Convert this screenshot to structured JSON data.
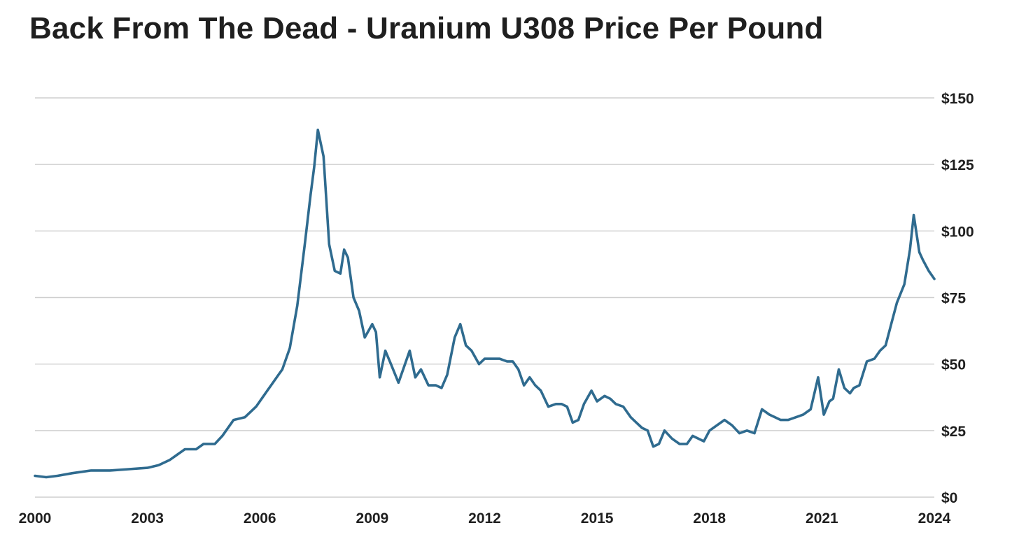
{
  "colors": {
    "line": "#2f6b8f",
    "grid": "#cfcfcf",
    "text": "#1f1f1f"
  },
  "chart_data": {
    "type": "line",
    "title": "Back From The Dead - Uranium U308 Price Per Pound",
    "xlabel": "",
    "ylabel": "",
    "xlim": [
      2000,
      2024
    ],
    "ylim": [
      0,
      150
    ],
    "grid": true,
    "legend": "none",
    "x_ticks": [
      "2000",
      "2003",
      "2006",
      "2009",
      "2012",
      "2015",
      "2018",
      "2021",
      "2024"
    ],
    "y_ticks": [
      "$0",
      "$25",
      "$50",
      "$75",
      "$100",
      "$125",
      "$150"
    ],
    "series": [
      {
        "x": [
          2000.0,
          2000.3,
          2000.6,
          2001.0,
          2001.5,
          2002.0,
          2002.5,
          2003.0,
          2003.3,
          2003.6,
          2004.0,
          2004.3,
          2004.5,
          2004.8,
          2005.0,
          2005.3,
          2005.6,
          2005.9,
          2006.1,
          2006.3,
          2006.5,
          2006.6,
          2006.8,
          2007.0,
          2007.2,
          2007.35,
          2007.45,
          2007.55,
          2007.7,
          2007.85,
          2008.0,
          2008.15,
          2008.25,
          2008.35,
          2008.5,
          2008.65,
          2008.8,
          2009.0,
          2009.1,
          2009.2,
          2009.35,
          2009.5,
          2009.7,
          2010.0,
          2010.15,
          2010.3,
          2010.5,
          2010.7,
          2010.85,
          2011.0,
          2011.2,
          2011.35,
          2011.5,
          2011.65,
          2011.85,
          2012.0,
          2012.2,
          2012.4,
          2012.6,
          2012.75,
          2012.9,
          2013.05,
          2013.2,
          2013.35,
          2013.5,
          2013.7,
          2013.9,
          2014.05,
          2014.2,
          2014.35,
          2014.5,
          2014.65,
          2014.85,
          2015.0,
          2015.2,
          2015.35,
          2015.5,
          2015.7,
          2015.9,
          2016.05,
          2016.2,
          2016.35,
          2016.5,
          2016.65,
          2016.8,
          2017.0,
          2017.2,
          2017.4,
          2017.55,
          2017.7,
          2017.85,
          2018.0,
          2018.2,
          2018.4,
          2018.6,
          2018.8,
          2019.0,
          2019.2,
          2019.4,
          2019.6,
          2019.75,
          2019.9,
          2020.1,
          2020.3,
          2020.5,
          2020.7,
          2020.9,
          2021.05,
          2021.2,
          2021.3,
          2021.45,
          2021.6,
          2021.75,
          2021.85,
          2022.0,
          2022.2,
          2022.4,
          2022.55,
          2022.7,
          2022.85,
          2023.0,
          2023.2,
          2023.35,
          2023.45,
          2023.6,
          2023.7,
          2023.85,
          2024.0
        ],
        "values": [
          8,
          7.5,
          8,
          9,
          10,
          10,
          10.5,
          11,
          12,
          14,
          18,
          18,
          20,
          20,
          23,
          29,
          30,
          34,
          38,
          42,
          46,
          48,
          56,
          72,
          95,
          113,
          124,
          138,
          128,
          95,
          85,
          84,
          93,
          90,
          75,
          70,
          60,
          65,
          62,
          45,
          55,
          50,
          43,
          55,
          45,
          48,
          42,
          42,
          41,
          46,
          60,
          65,
          57,
          55,
          50,
          52,
          52,
          52,
          51,
          51,
          48,
          42,
          45,
          42,
          40,
          34,
          35,
          35,
          34,
          28,
          29,
          35,
          40,
          36,
          38,
          37,
          35,
          34,
          30,
          28,
          26,
          25,
          19,
          20,
          25,
          22,
          20,
          20,
          23,
          22,
          21,
          25,
          27,
          29,
          27,
          24,
          25,
          24,
          33,
          31,
          30,
          29,
          29,
          30,
          31,
          33,
          45,
          31,
          36,
          37,
          48,
          41,
          39,
          41,
          42,
          51,
          52,
          55,
          57,
          65,
          73,
          80,
          93,
          106,
          92,
          89,
          85,
          82
        ]
      }
    ]
  }
}
